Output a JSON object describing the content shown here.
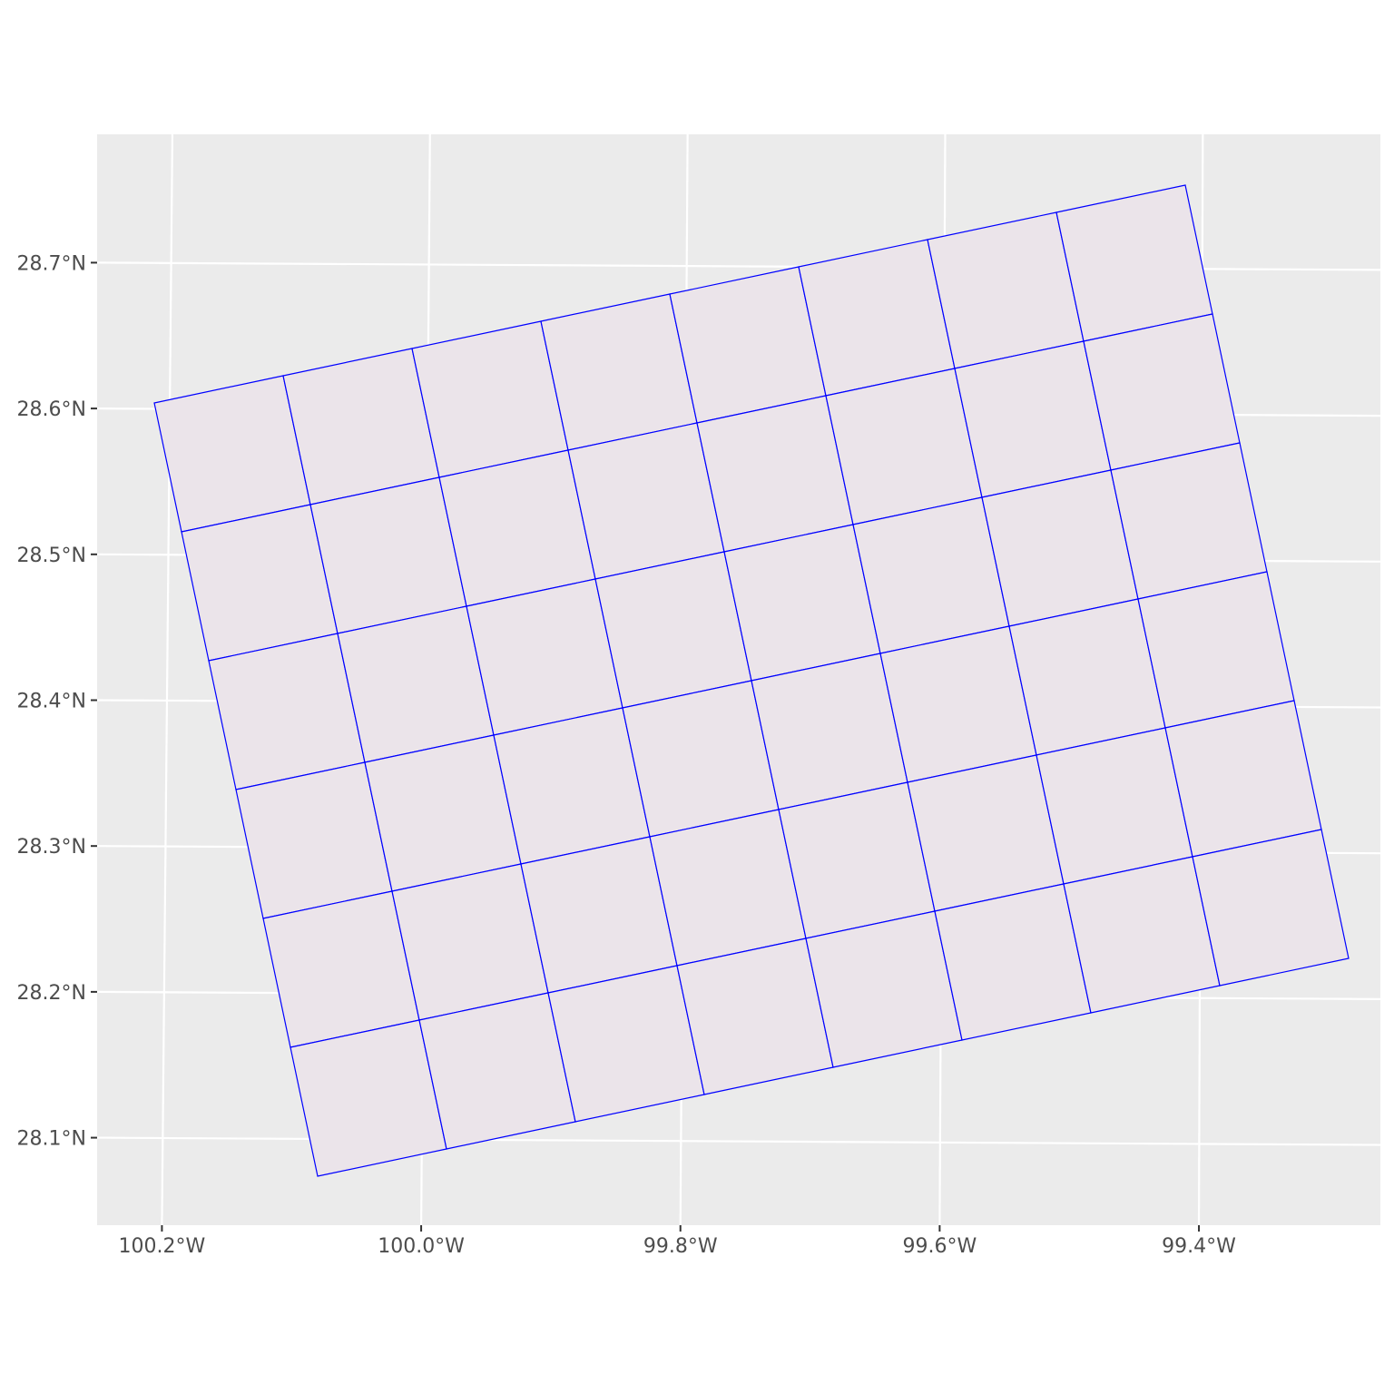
{
  "chart_data": {
    "type": "map",
    "xlim": [
      -100.25,
      -99.26
    ],
    "ylim": [
      28.04,
      28.788
    ],
    "xticks": [
      {
        "value": -100.2,
        "label": "100.2°W"
      },
      {
        "value": -100.0,
        "label": "100.0°W"
      },
      {
        "value": -99.8,
        "label": "99.8°W"
      },
      {
        "value": -99.6,
        "label": "99.6°W"
      },
      {
        "value": -99.4,
        "label": "99.4°W"
      }
    ],
    "yticks": [
      {
        "value": 28.1,
        "label": "28.1°N"
      },
      {
        "value": 28.2,
        "label": "28.2°N"
      },
      {
        "value": 28.3,
        "label": "28.3°N"
      },
      {
        "value": 28.4,
        "label": "28.4°N"
      },
      {
        "value": 28.5,
        "label": "28.5°N"
      },
      {
        "value": 28.6,
        "label": "28.6°N"
      },
      {
        "value": 28.7,
        "label": "28.7°N"
      }
    ],
    "grid": true,
    "color": "#0000ff"
  }
}
